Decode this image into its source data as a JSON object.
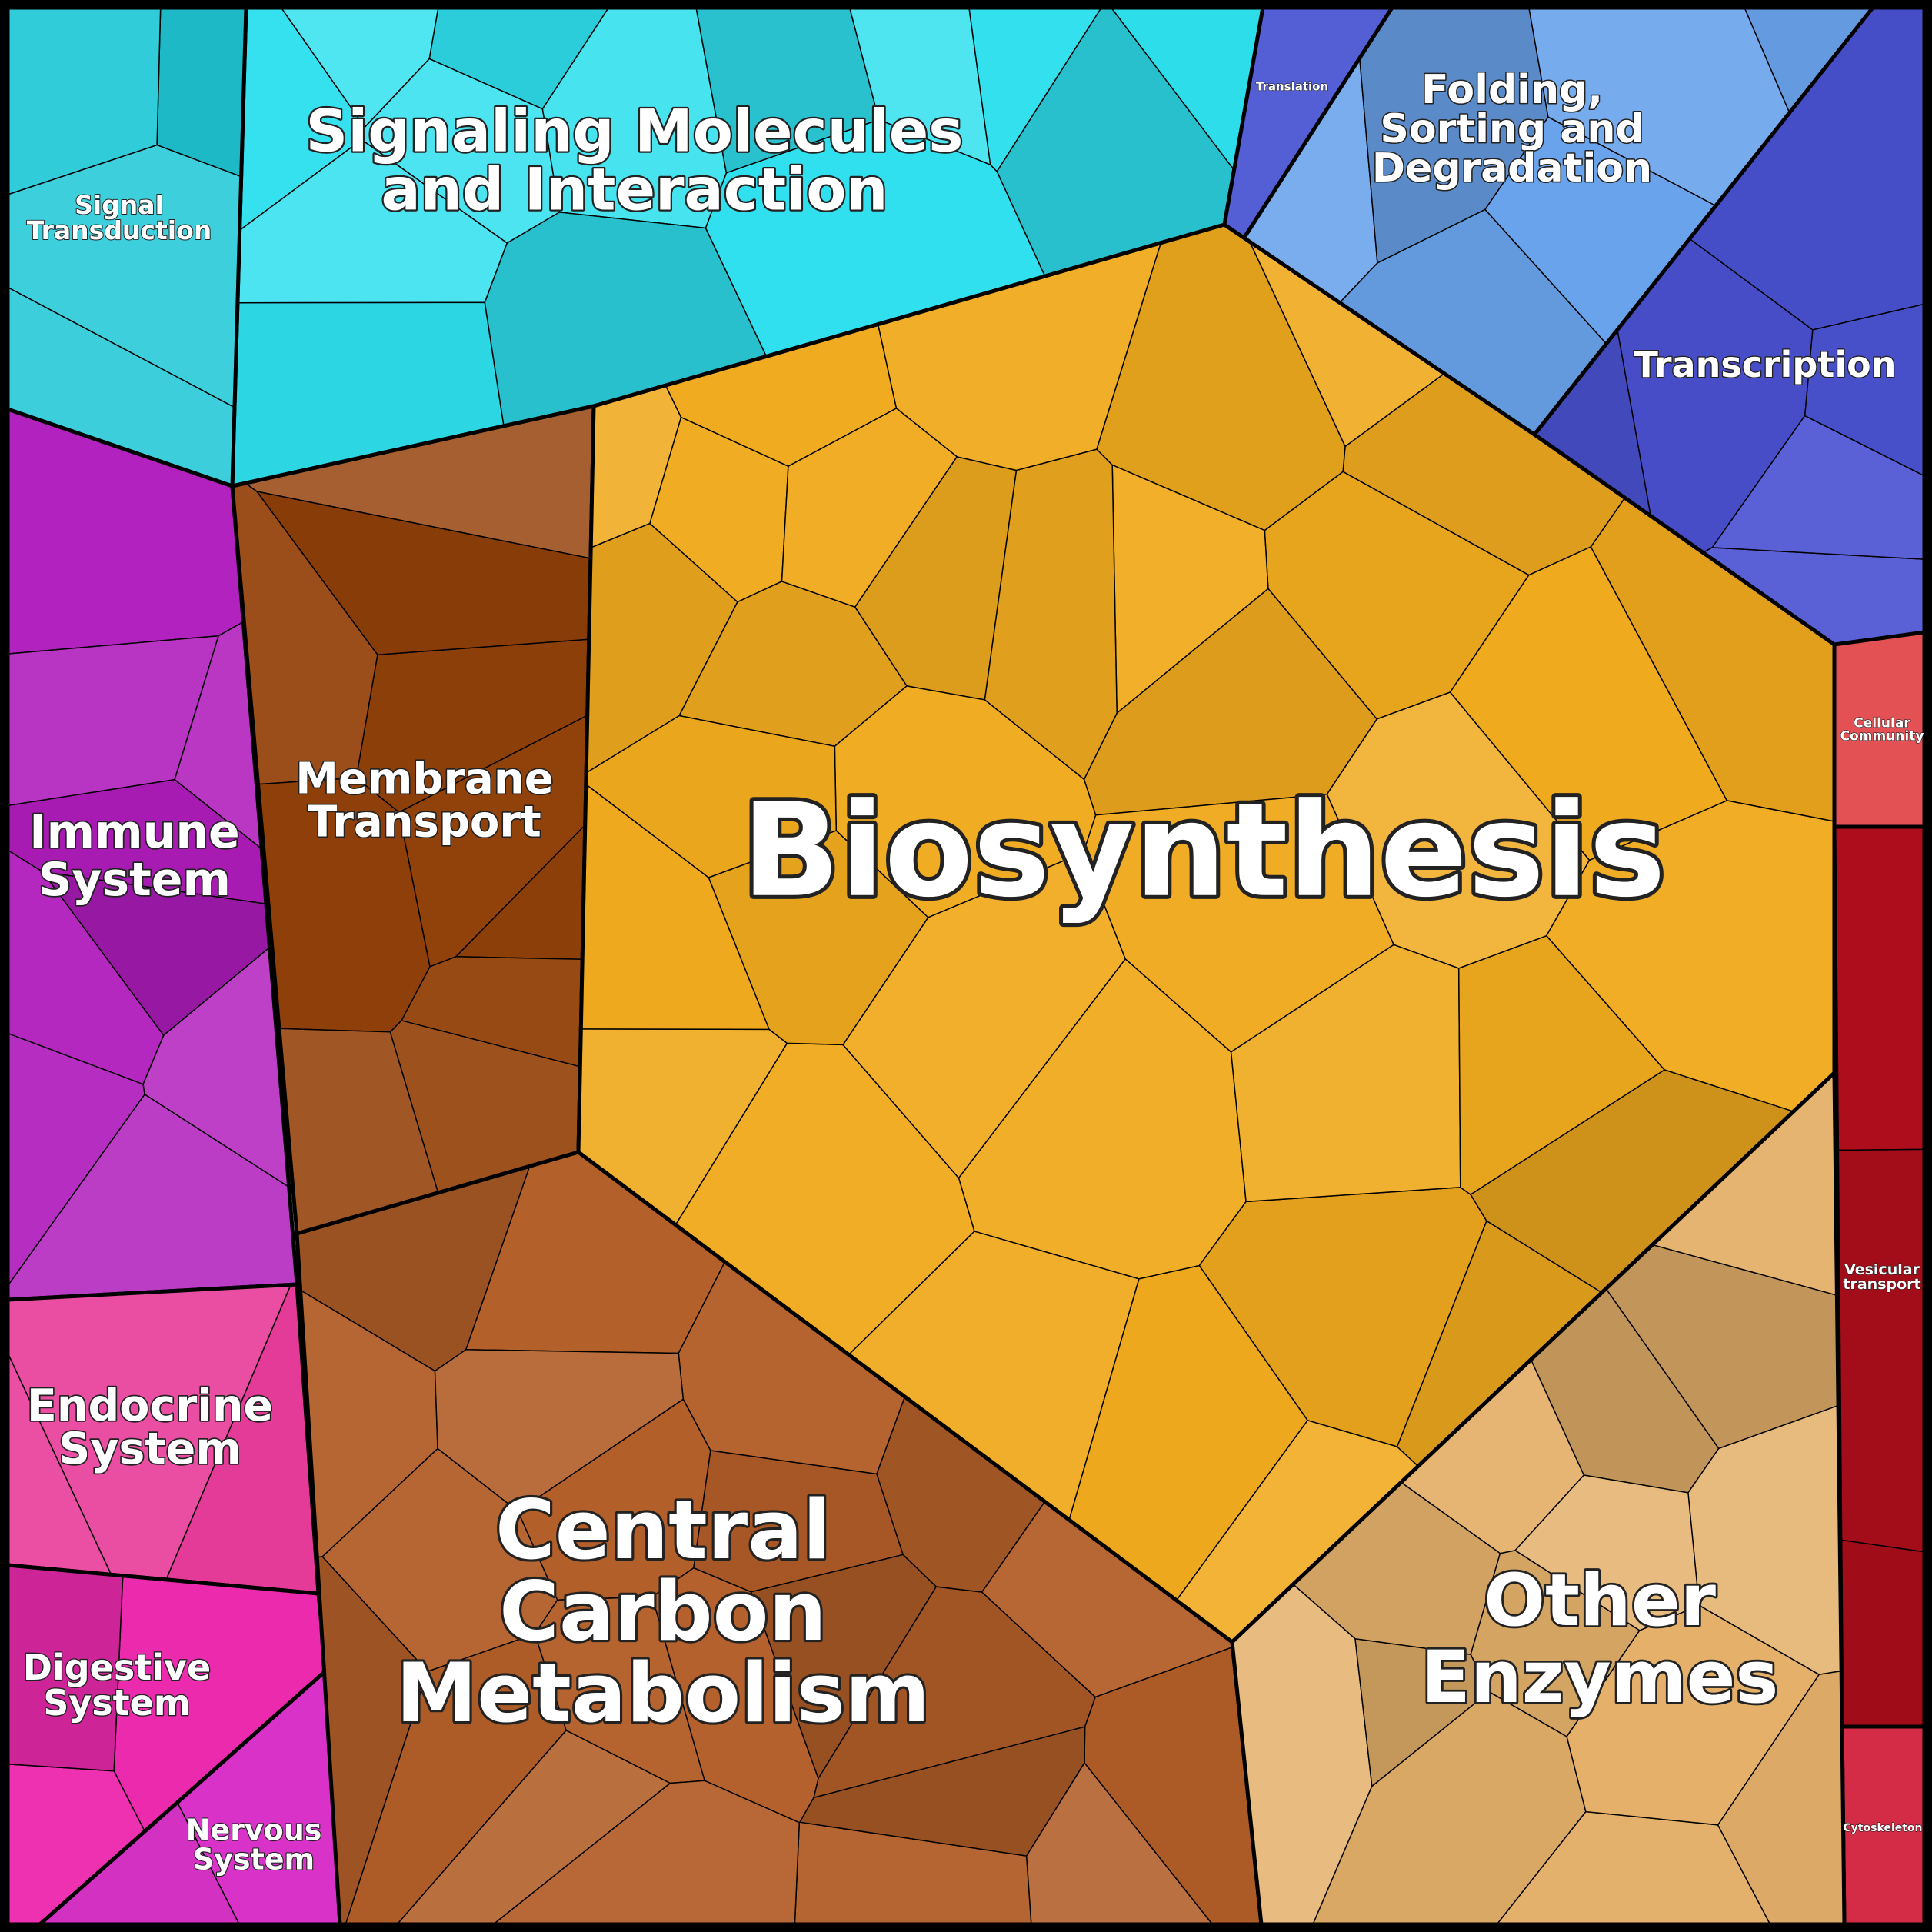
{
  "diagram": {
    "type": "voronoi-treemap",
    "categories": [
      {
        "id": "signaling",
        "label_lines": [
          "Signaling Molecules",
          "and Interaction"
        ],
        "color": "#2fe0ee"
      },
      {
        "id": "signal-transduction",
        "label_lines": [
          "Signal",
          "Transduction"
        ],
        "color": "#20c8d6"
      },
      {
        "id": "translation",
        "label_lines": [
          "Translation"
        ],
        "color": "#5a66e6"
      },
      {
        "id": "folding",
        "label_lines": [
          "Folding,",
          "Sorting and",
          "Degradation"
        ],
        "color": "#6aa4ec"
      },
      {
        "id": "transcription",
        "label_lines": [
          "Transcription"
        ],
        "color": "#4a52d2"
      },
      {
        "id": "immune",
        "label_lines": [
          "Immune",
          "System"
        ],
        "color": "#b01cbc"
      },
      {
        "id": "membrane",
        "label_lines": [
          "Membrane",
          "Transport"
        ],
        "color": "#94420a"
      },
      {
        "id": "biosynthesis",
        "label_lines": [
          "Biosynthesis"
        ],
        "color": "#f0aa1e"
      },
      {
        "id": "cellular-community",
        "label_lines": [
          "Cellular",
          "Community"
        ],
        "color": "#ea5458"
      },
      {
        "id": "vesicular",
        "label_lines": [
          "Vesicular",
          "transport"
        ],
        "color": "#b20e1c"
      },
      {
        "id": "cytoskeleton",
        "label_lines": [
          "Cytoskeleton"
        ],
        "color": "#d82c48"
      },
      {
        "id": "endocrine",
        "label_lines": [
          "Endocrine",
          "System"
        ],
        "color": "#e83c9a"
      },
      {
        "id": "digestive",
        "label_lines": [
          "Digestive",
          "System"
        ],
        "color": "#ec2aae"
      },
      {
        "id": "nervous",
        "label_lines": [
          "Nervous",
          "System"
        ],
        "color": "#d832c8"
      },
      {
        "id": "central-carbon",
        "label_lines": [
          "Central",
          "Carbon",
          "Metabolism"
        ],
        "color": "#b25e28"
      },
      {
        "id": "other-enzymes",
        "label_lines": [
          "Other",
          "Enzymes"
        ],
        "color": "#e4b06a"
      }
    ]
  }
}
